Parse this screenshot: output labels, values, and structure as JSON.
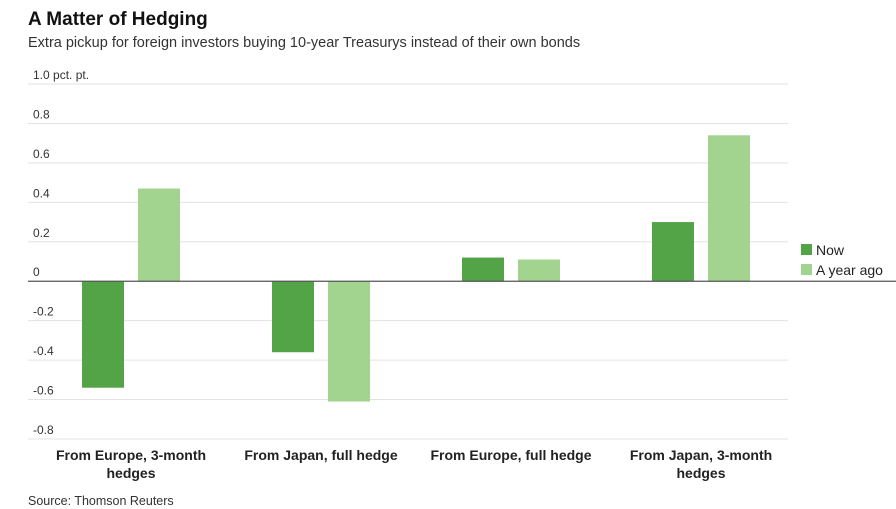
{
  "header": {
    "title": "A Matter of Hedging",
    "subtitle": "Extra pickup for foreign investors buying 10-year Treasurys instead of their own bonds"
  },
  "footer": {
    "source": "Source: Thomson Reuters"
  },
  "chart_data": {
    "type": "bar",
    "title": "A Matter of Hedging",
    "subtitle": "Extra pickup for foreign investors buying 10-year Treasurys instead of their own bonds",
    "categories": [
      [
        "From Europe, 3-month",
        "hedges"
      ],
      [
        "From Japan, full hedge"
      ],
      [
        "From Europe, full hedge"
      ],
      [
        "From Japan, 3-month",
        "hedges"
      ]
    ],
    "series": [
      {
        "name": "Now",
        "color": "#52a447",
        "values": [
          -0.54,
          -0.36,
          0.12,
          0.3
        ]
      },
      {
        "name": "A year ago",
        "color": "#a3d48f",
        "values": [
          0.47,
          -0.61,
          0.11,
          0.74
        ]
      }
    ],
    "ylim": [
      -0.8,
      1.0
    ],
    "yticks": [
      1.0,
      0.8,
      0.6,
      0.4,
      0.2,
      0,
      -0.2,
      -0.4,
      -0.6,
      -0.8
    ],
    "ytick_labels": [
      "1.0 pct. pt.",
      "0.8",
      "0.6",
      "0.4",
      "0.2",
      "0",
      "-0.2",
      "-0.4",
      "-0.6",
      "-0.8"
    ],
    "xlabel": "",
    "ylabel": "",
    "grid": true,
    "legend": "right"
  }
}
